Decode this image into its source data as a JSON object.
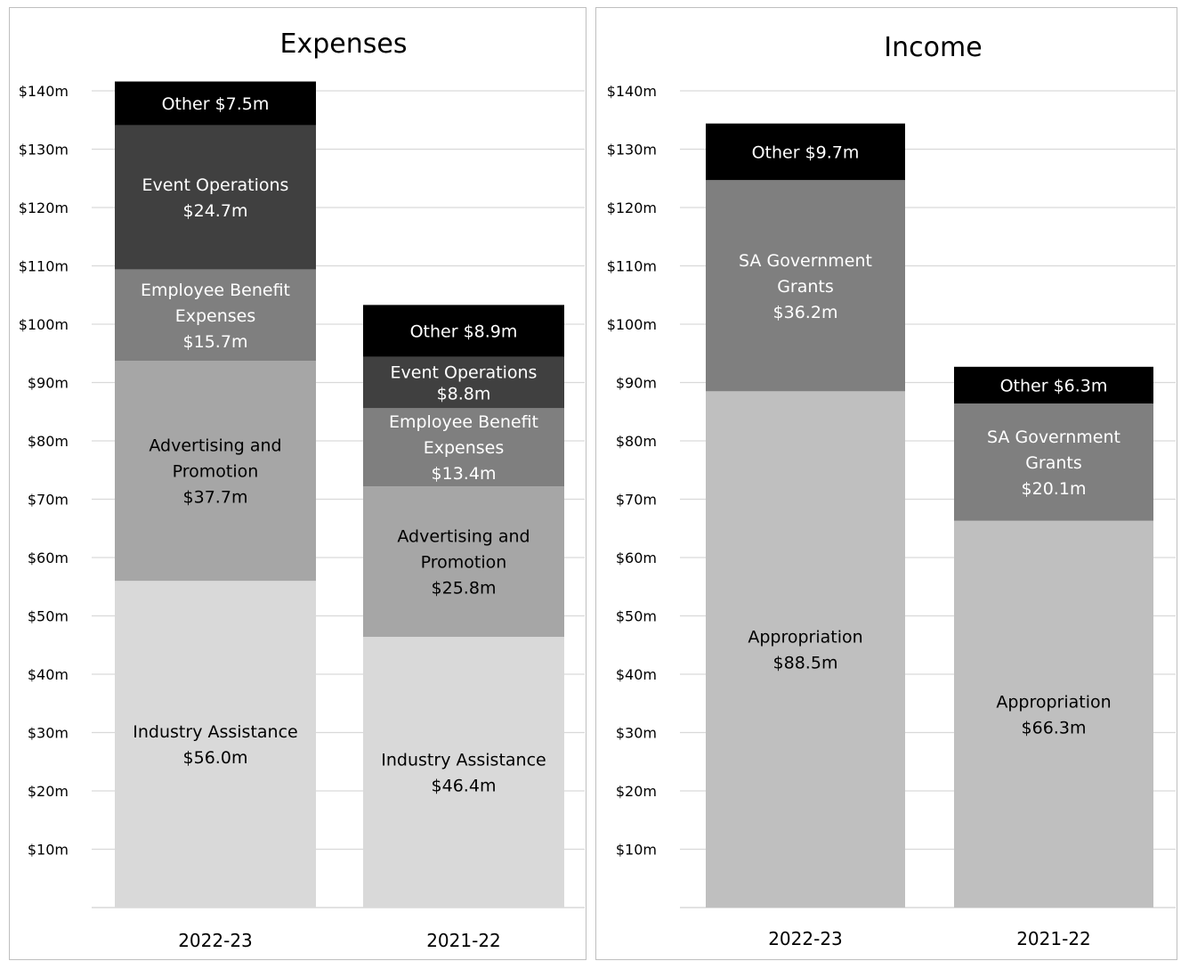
{
  "chart_data": [
    {
      "type": "bar",
      "stacked": true,
      "title": "Expenses",
      "categories": [
        "2022-23",
        "2021-22"
      ],
      "ylim": [
        0,
        140
      ],
      "y_ticks": [
        "$10m",
        "$20m",
        "$30m",
        "$40m",
        "$50m",
        "$60m",
        "$70m",
        "$80m",
        "$90m",
        "$100m",
        "$110m",
        "$120m",
        "$130m",
        "$140m"
      ],
      "grid": true,
      "series": [
        {
          "name": "Industry Assistance",
          "values": [
            56.0,
            46.4
          ],
          "color": "#d9d9d9",
          "label_color": "#000000",
          "labels": [
            [
              "Industry Assistance",
              "$56.0m"
            ],
            [
              "Industry Assistance",
              "$46.4m"
            ]
          ]
        },
        {
          "name": "Advertising and Promotion",
          "values": [
            37.7,
            25.8
          ],
          "color": "#a6a6a6",
          "label_color": "#000000",
          "labels": [
            [
              "Advertising and",
              "Promotion",
              "$37.7m"
            ],
            [
              "Advertising and",
              "Promotion",
              "$25.8m"
            ]
          ]
        },
        {
          "name": "Employee Benefit Expenses",
          "values": [
            15.7,
            13.4
          ],
          "color": "#7f7f7f",
          "label_color": "#ffffff",
          "labels": [
            [
              "Employee Benefit",
              "Expenses",
              "$15.7m"
            ],
            [
              "Employee Benefit",
              "Expenses",
              "$13.4m"
            ]
          ]
        },
        {
          "name": "Event Operations",
          "values": [
            24.7,
            8.8
          ],
          "color": "#404040",
          "label_color": "#ffffff",
          "labels": [
            [
              "Event Operations",
              "$24.7m"
            ],
            [
              "Event Operations",
              "$8.8m"
            ]
          ]
        },
        {
          "name": "Other",
          "values": [
            7.5,
            8.9
          ],
          "color": "#000000",
          "label_color": "#ffffff",
          "labels": [
            [
              "Other $7.5m"
            ],
            [
              "Other $8.9m"
            ]
          ]
        }
      ]
    },
    {
      "type": "bar",
      "stacked": true,
      "title": "Income",
      "categories": [
        "2022-23",
        "2021-22"
      ],
      "ylim": [
        0,
        140
      ],
      "y_ticks": [
        "$10m",
        "$20m",
        "$30m",
        "$40m",
        "$50m",
        "$60m",
        "$70m",
        "$80m",
        "$90m",
        "$100m",
        "$110m",
        "$120m",
        "$130m",
        "$140m"
      ],
      "grid": true,
      "series": [
        {
          "name": "Appropriation",
          "values": [
            88.5,
            66.3
          ],
          "color": "#bfbfbf",
          "label_color": "#000000",
          "labels": [
            [
              "Appropriation",
              "$88.5m"
            ],
            [
              "Appropriation",
              "$66.3m"
            ]
          ]
        },
        {
          "name": "SA Government Grants",
          "values": [
            36.2,
            20.1
          ],
          "color": "#7f7f7f",
          "label_color": "#ffffff",
          "labels": [
            [
              "SA Government",
              "Grants",
              "$36.2m"
            ],
            [
              "SA Government",
              "Grants",
              "$20.1m"
            ]
          ]
        },
        {
          "name": "Other",
          "values": [
            9.7,
            6.3
          ],
          "color": "#000000",
          "label_color": "#ffffff",
          "labels": [
            [
              "Other $9.7m"
            ],
            [
              "Other $6.3m"
            ]
          ]
        }
      ]
    }
  ]
}
